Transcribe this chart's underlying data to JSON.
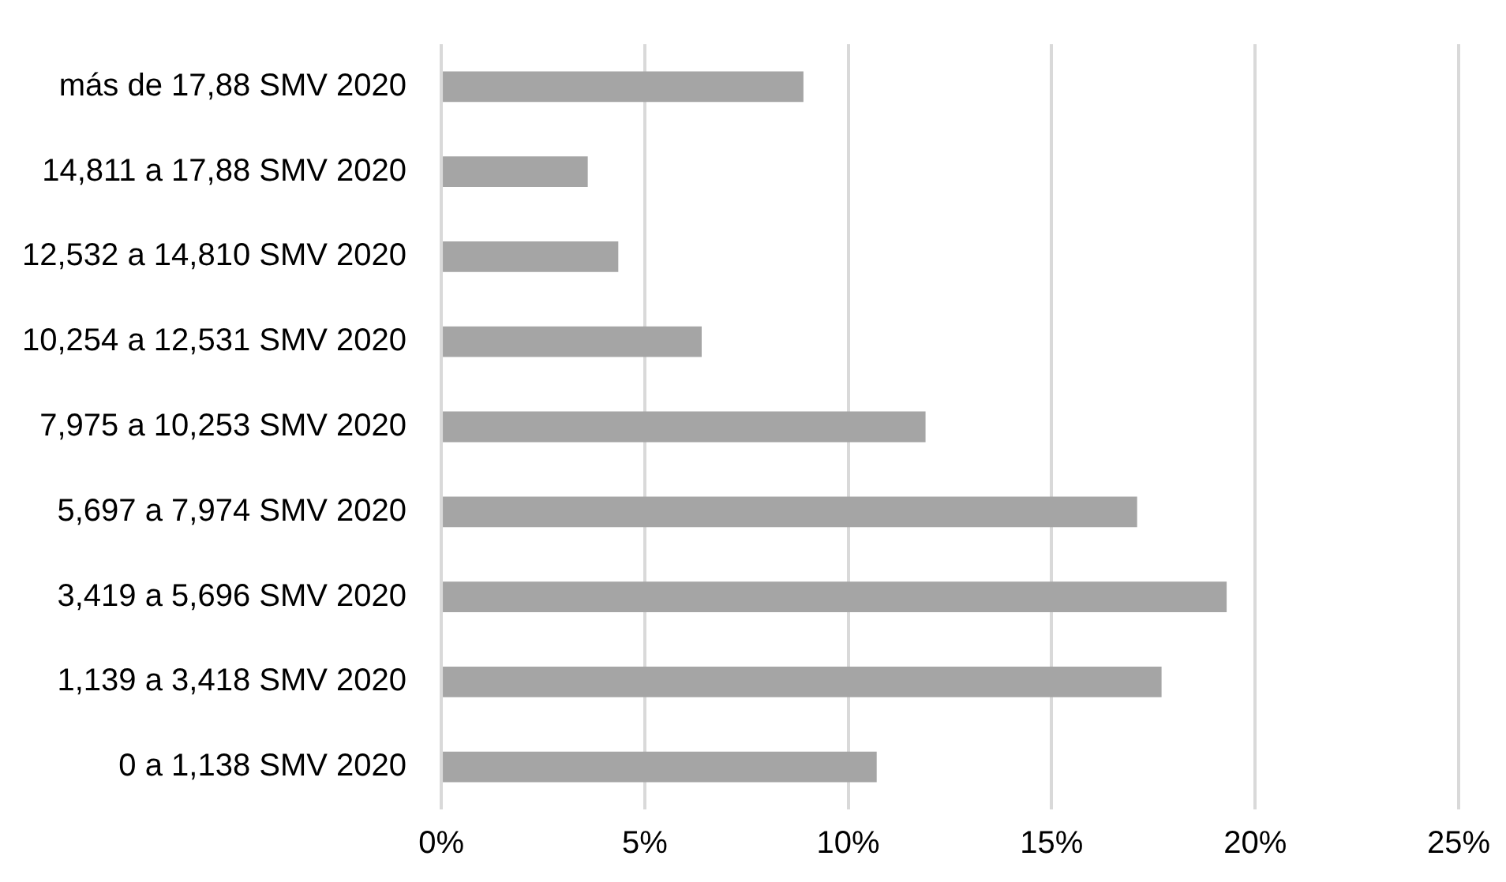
{
  "chart_data": {
    "type": "bar",
    "orientation": "horizontal",
    "categories": [
      "más de 17,88 SMV 2020",
      "14,811 a 17,88 SMV 2020",
      "12,532 a 14,810 SMV 2020",
      "10,254 a 12,531 SMV 2020",
      "7,975 a 10,253 SMV 2020",
      "5,697 a 7,974 SMV 2020",
      "3,419 a 5,696 SMV 2020",
      "1,139 a 3,418 SMV 2020",
      "0 a 1,138 SMV 2020"
    ],
    "values": [
      8.9,
      3.6,
      4.35,
      6.4,
      11.9,
      17.1,
      19.3,
      17.7,
      10.7
    ],
    "color": "#a5a5a5",
    "xlim": [
      0,
      25
    ],
    "xticks": [
      {
        "value": 0,
        "label": "0%"
      },
      {
        "value": 5,
        "label": "5%"
      },
      {
        "value": 10,
        "label": "10%"
      },
      {
        "value": 15,
        "label": "15%"
      },
      {
        "value": 20,
        "label": "20%"
      },
      {
        "value": 25,
        "label": "25%"
      }
    ],
    "grid": "x"
  }
}
